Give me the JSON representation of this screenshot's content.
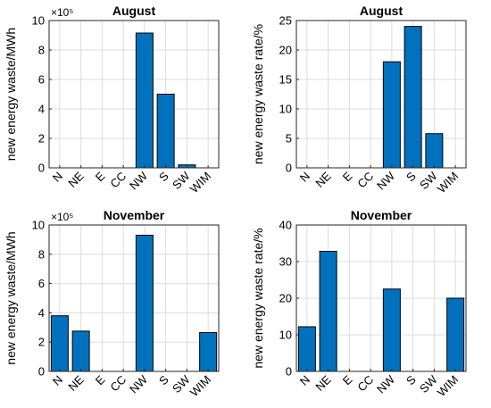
{
  "chart_data": [
    {
      "type": "bar",
      "title": "August",
      "ylabel": "new energy waste/MWh",
      "exponent_label": "×10⁵",
      "categories": [
        "N",
        "NE",
        "E",
        "CC",
        "NW",
        "S",
        "SW",
        "WIM"
      ],
      "values": [
        0,
        0,
        0,
        0,
        9.15,
        5.0,
        0.2,
        0
      ],
      "ylim": [
        0,
        10
      ],
      "yticks": [
        "0",
        "2",
        "4",
        "6",
        "8",
        "10"
      ],
      "grid": true,
      "bar_color": "#0072BD"
    },
    {
      "type": "bar",
      "title": "August",
      "ylabel": "new energy waste rate/%",
      "exponent_label": "",
      "categories": [
        "N",
        "NE",
        "E",
        "CC",
        "NW",
        "S",
        "SW",
        "WIM"
      ],
      "values": [
        0,
        0,
        0,
        0,
        18.0,
        24.0,
        5.8,
        0
      ],
      "ylim": [
        0,
        25
      ],
      "yticks": [
        "0",
        "5",
        "10",
        "15",
        "20",
        "25"
      ],
      "grid": true,
      "bar_color": "#0072BD"
    },
    {
      "type": "bar",
      "title": "November",
      "ylabel": "new energy waste/MWh",
      "exponent_label": "×10⁵",
      "categories": [
        "N",
        "NE",
        "E",
        "CC",
        "NW",
        "S",
        "SW",
        "WIM"
      ],
      "values": [
        3.8,
        2.75,
        0,
        0,
        9.3,
        0,
        0,
        2.65
      ],
      "ylim": [
        0,
        10
      ],
      "yticks": [
        "0",
        "2",
        "4",
        "6",
        "8",
        "10"
      ],
      "grid": true,
      "bar_color": "#0072BD"
    },
    {
      "type": "bar",
      "title": "November",
      "ylabel": "new energy waste rate/%",
      "exponent_label": "",
      "categories": [
        "N",
        "NE",
        "E",
        "CC",
        "NW",
        "S",
        "SW",
        "WIM"
      ],
      "values": [
        12.2,
        32.8,
        0,
        0,
        22.5,
        0,
        0,
        20.0
      ],
      "ylim": [
        0,
        40
      ],
      "yticks": [
        "0",
        "10",
        "20",
        "30",
        "40"
      ],
      "grid": true,
      "bar_color": "#0072BD"
    }
  ]
}
